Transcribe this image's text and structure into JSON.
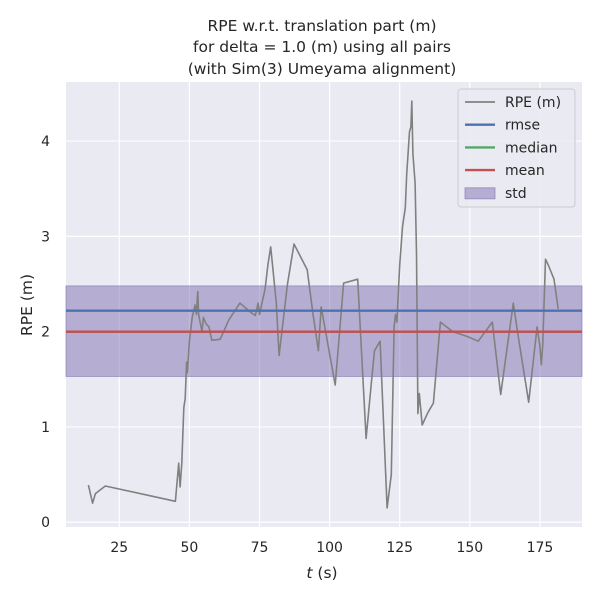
{
  "chart_data": {
    "type": "line",
    "title_lines": [
      "RPE w.r.t. translation part (m)",
      "for delta = 1.0 (m) using all pairs",
      "(with Sim(3) Umeyama alignment)"
    ],
    "xlabel_italic": "t",
    "xlabel_rest": " (s)",
    "ylabel": "RPE (m)",
    "xlim": [
      6,
      190
    ],
    "ylim": [
      -0.05,
      4.62
    ],
    "xticks": [
      25,
      50,
      75,
      100,
      125,
      150,
      175
    ],
    "yticks": [
      0,
      1,
      2,
      3,
      4
    ],
    "grid": true,
    "legend_position": "top-right",
    "colors": {
      "rpe": "#808080",
      "rmse": "#4c72b0",
      "median": "#55a868",
      "mean": "#c44e52",
      "std": "#8172b2",
      "background": "#eaeaf2",
      "grid": "#ffffff"
    },
    "legend": [
      {
        "key": "rpe",
        "label": "RPE (m)",
        "kind": "line"
      },
      {
        "key": "rmse",
        "label": "rmse",
        "kind": "line"
      },
      {
        "key": "median",
        "label": "median",
        "kind": "line"
      },
      {
        "key": "mean",
        "label": "mean",
        "kind": "line"
      },
      {
        "key": "std",
        "label": "std",
        "kind": "patch"
      }
    ],
    "stats": {
      "rmse": 2.22,
      "median": 2.0,
      "mean": 2.0,
      "std_low": 1.53,
      "std_high": 2.48
    },
    "series": [
      {
        "name": "RPE (m)",
        "x": [
          14,
          15.5,
          16.5,
          20,
          45,
          46.2,
          46.7,
          47.3,
          48,
          48.5,
          49,
          49.3,
          50,
          51,
          52,
          52.5,
          52.8,
          53,
          53.3,
          54.5,
          55,
          56,
          57,
          58,
          61,
          64,
          68,
          72,
          73.5,
          74.5,
          75,
          77,
          78,
          79,
          81,
          82,
          83,
          85,
          87.3,
          92,
          94,
          96,
          97,
          102,
          105,
          110,
          113,
          115,
          116,
          118,
          119,
          120.5,
          122,
          123,
          123.5,
          124,
          125,
          126,
          127,
          127.5,
          128.5,
          129,
          129.3,
          129.7,
          130.5,
          131,
          131.5,
          132,
          133,
          135,
          137,
          139.5,
          144,
          149,
          153,
          158,
          161,
          165.5,
          167,
          171,
          174,
          175,
          175.5,
          176,
          177,
          178,
          180,
          181.5
        ],
        "y": [
          0.39,
          0.2,
          0.3,
          0.38,
          0.22,
          0.62,
          0.37,
          0.62,
          1.2,
          1.3,
          1.68,
          1.57,
          1.9,
          2.15,
          2.28,
          2.18,
          2.33,
          2.42,
          2.18,
          2.0,
          2.15,
          2.08,
          2.05,
          1.91,
          1.92,
          2.12,
          2.3,
          2.2,
          2.17,
          2.3,
          2.18,
          2.45,
          2.7,
          2.89,
          2.3,
          1.75,
          2.0,
          2.5,
          2.92,
          2.65,
          2.2,
          1.8,
          2.26,
          1.44,
          2.51,
          2.55,
          0.88,
          1.5,
          1.8,
          1.9,
          1.2,
          0.15,
          0.5,
          2.05,
          2.18,
          2.1,
          2.7,
          3.1,
          3.3,
          3.65,
          4.1,
          4.15,
          4.42,
          3.87,
          3.56,
          2.82,
          1.14,
          1.35,
          1.02,
          1.15,
          1.25,
          2.1,
          2.0,
          1.95,
          1.9,
          2.1,
          1.34,
          2.3,
          2.0,
          1.26,
          2.05,
          1.85,
          1.65,
          1.85,
          2.76,
          2.7,
          2.55,
          2.24
        ]
      },
      {
        "name": "rmse",
        "y": 2.22
      },
      {
        "name": "median",
        "y": 2.0
      },
      {
        "name": "mean",
        "y": 2.0
      },
      {
        "name": "std",
        "range": [
          1.53,
          2.48
        ]
      }
    ]
  }
}
